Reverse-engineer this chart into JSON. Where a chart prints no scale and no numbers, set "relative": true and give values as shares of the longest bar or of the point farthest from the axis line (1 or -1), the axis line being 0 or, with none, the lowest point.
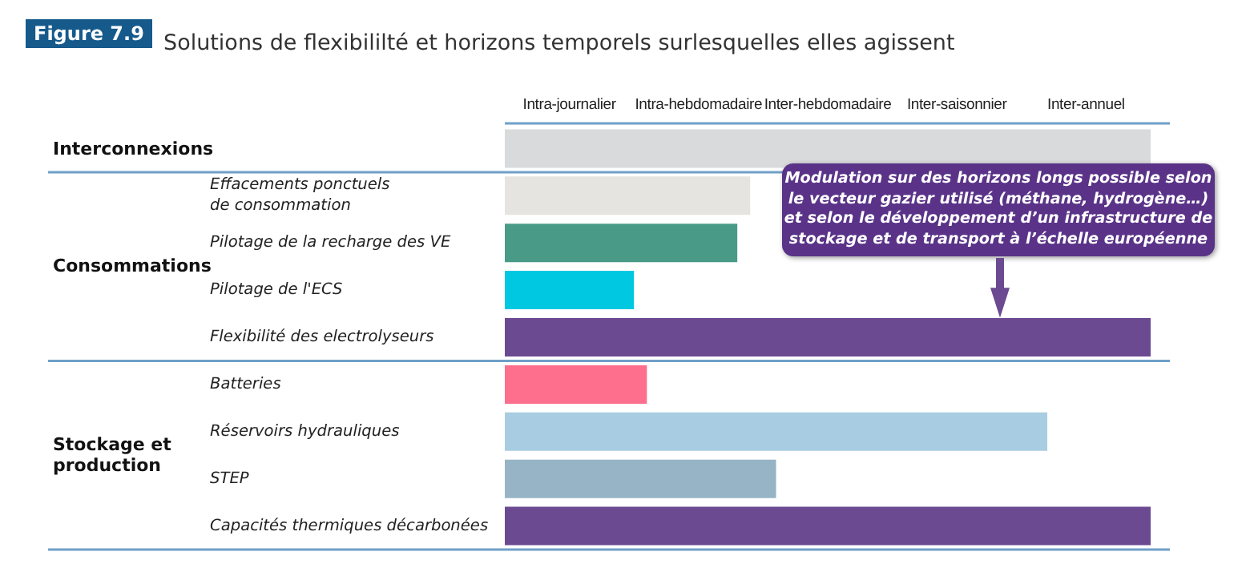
{
  "chart_data": {
    "type": "bar",
    "orientation": "horizontal",
    "relative": true,
    "title": "Solutions de flexibililté et horizons temporels surlesquelles elles agissent",
    "categories": [
      null,
      "Effacements ponctuels\nde consommation",
      "Pilotage de la recharge des VE",
      "Pilotage de l'ECS",
      "Flexibilité des electrolyseurs",
      "Batteries",
      "Réservoirs hydrauliques",
      "STEP",
      "Capacités thermiques décarbonées"
    ],
    "values": [
      1,
      0.38,
      0.36,
      0.2,
      1,
      0.22,
      0.84,
      0.42,
      1
    ],
    "colors": [
      "#d9dadc",
      "#e6e4e0",
      "#4a9a88",
      "#00c8e0",
      "#6b4a92",
      "#fd6f8c",
      "#a8cde2",
      "#97b4c6",
      "#6b4a92"
    ],
    "annotations": [
      "Figure 7.9",
      "Interconnexions",
      "Consommations",
      "Stockage et\nproduction",
      "Intra-journalier",
      "Intra-hebdomadaire",
      "Inter-hebdomadaire",
      "Inter-saisonnier",
      "Inter-annuel",
      "Modulation sur des horizons longs possible selon\nle vecteur gazier utilisé (méthane, hydrogène…)\net selon le développement d’un infrastructure de\nstockage et de transport à l’échelle européenne"
    ]
  }
}
